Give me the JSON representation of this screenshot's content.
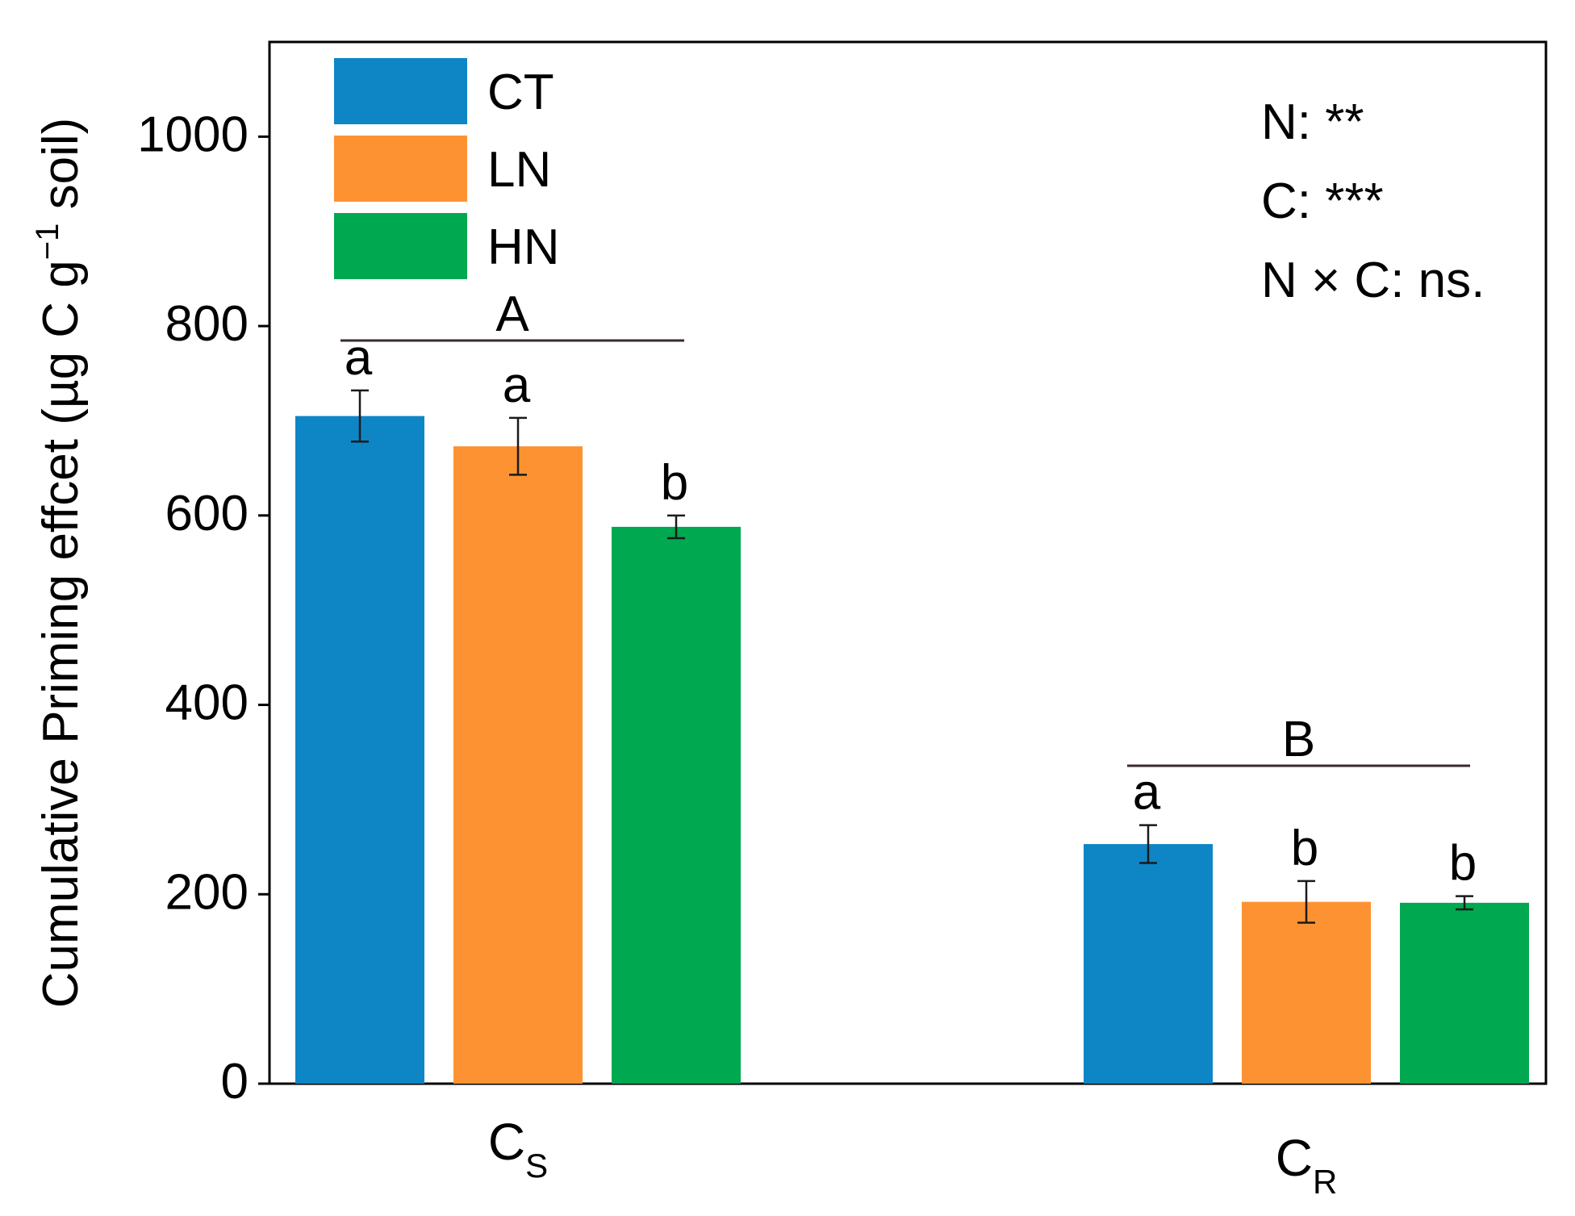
{
  "chart_data": {
    "type": "bar",
    "title": "",
    "ylabel_main": "Cumulative Priming effcet (µg C g",
    "ylabel_sup": "−1",
    "ylabel_tail": " soil)",
    "xlabel": "",
    "ylim": [
      0,
      1100
    ],
    "yticks": [
      0,
      200,
      400,
      600,
      800,
      1000
    ],
    "grid": false,
    "legend_position": "top-left",
    "categories": [
      {
        "base": "C",
        "sub": "S"
      },
      {
        "base": "C",
        "sub": "R"
      }
    ],
    "series": [
      {
        "name": "CT",
        "color": "#0e86c6",
        "values": [
          705,
          253
        ],
        "errors": [
          27,
          20
        ],
        "letters": [
          "a",
          "a"
        ]
      },
      {
        "name": "LN",
        "color": "#fd9232",
        "values": [
          673,
          192
        ],
        "errors": [
          30,
          22
        ],
        "letters": [
          "a",
          "b"
        ]
      },
      {
        "name": "HN",
        "color": "#00a850",
        "values": [
          588,
          191
        ],
        "errors": [
          12,
          7
        ],
        "letters": [
          "b",
          "b"
        ]
      }
    ],
    "group_letters": [
      "A",
      "B"
    ],
    "group_line_value": 782,
    "stats": [
      "N: **",
      "C: ***",
      "N × C: ns."
    ]
  }
}
